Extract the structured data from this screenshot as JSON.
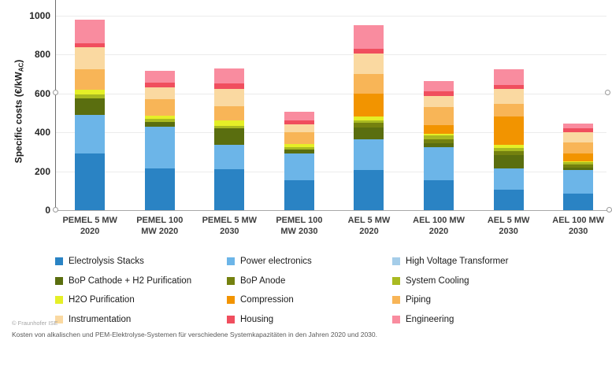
{
  "chart_data": {
    "type": "bar",
    "subtype": "stacked",
    "title": "",
    "ylabel_prefix": "Specific costs (€/kW",
    "ylabel_sub": "AC",
    "ylabel_suffix": ")",
    "xlabel": "",
    "ylim": [
      0,
      1000
    ],
    "yticks": [
      0,
      200,
      400,
      600,
      800,
      1000
    ],
    "grid": true,
    "legend_position": "bottom",
    "categories": [
      {
        "line1": "PEMEL 5 MW",
        "line2": "2020"
      },
      {
        "line1": "PEMEL 100",
        "line2": "MW 2020"
      },
      {
        "line1": "PEMEL 5 MW",
        "line2": "2030"
      },
      {
        "line1": "PEMEL 100",
        "line2": "MW 2030"
      },
      {
        "line1": "AEL 5 MW",
        "line2": "2020"
      },
      {
        "line1": "AEL 100 MW",
        "line2": "2020"
      },
      {
        "line1": "AEL 5 MW",
        "line2": "2030"
      },
      {
        "line1": "AEL 100 MW",
        "line2": "2030"
      }
    ],
    "series": [
      {
        "name": "Electrolysis Stacks",
        "color": "#2a83c4",
        "values": [
          290,
          215,
          210,
          155,
          205,
          155,
          105,
          85
        ]
      },
      {
        "name": "Power electronics",
        "color": "#6cb5e8",
        "values": [
          200,
          215,
          125,
          135,
          160,
          170,
          110,
          120
        ]
      },
      {
        "name": "High Voltage Transformer",
        "color": "#a5cde9",
        "values": [
          0,
          0,
          0,
          0,
          0,
          0,
          0,
          0
        ]
      },
      {
        "name": "BoP Cathode + H2 Purification",
        "color": "#5a6e0f",
        "values": [
          85,
          25,
          85,
          20,
          60,
          18,
          70,
          12
        ]
      },
      {
        "name": "BoP Anode",
        "color": "#74810f",
        "values": [
          0,
          0,
          0,
          0,
          25,
          22,
          20,
          16
        ]
      },
      {
        "name": "System Cooling",
        "color": "#a9ba21",
        "values": [
          20,
          15,
          15,
          15,
          10,
          18,
          15,
          12
        ]
      },
      {
        "name": "H2O Purification",
        "color": "#e5ef27",
        "values": [
          25,
          15,
          25,
          15,
          20,
          9,
          15,
          5
        ]
      },
      {
        "name": "Compression",
        "color": "#f29400",
        "values": [
          0,
          0,
          0,
          0,
          120,
          45,
          145,
          42
        ]
      },
      {
        "name": "Piping",
        "color": "#f8b557",
        "values": [
          105,
          85,
          75,
          60,
          100,
          95,
          65,
          55
        ]
      },
      {
        "name": "Instrumentation",
        "color": "#fad9a1",
        "values": [
          115,
          60,
          90,
          40,
          105,
          55,
          80,
          53
        ]
      },
      {
        "name": "Housing",
        "color": "#f04e5e",
        "values": [
          20,
          25,
          25,
          20,
          25,
          26,
          20,
          20
        ]
      },
      {
        "name": "Engineering",
        "color": "#f98c9f",
        "values": [
          120,
          60,
          80,
          45,
          120,
          52,
          80,
          25
        ]
      }
    ],
    "totals": [
      980,
      715,
      730,
      505,
      950,
      665,
      725,
      445
    ]
  },
  "footer": {
    "copyright": "© Fraunhofer ISE",
    "caption": "Kosten von alkalischen und PEM-Elektrolyse-Systemen für verschiedene Systemkapazitäten in den Jahren 2020 und 2030."
  }
}
